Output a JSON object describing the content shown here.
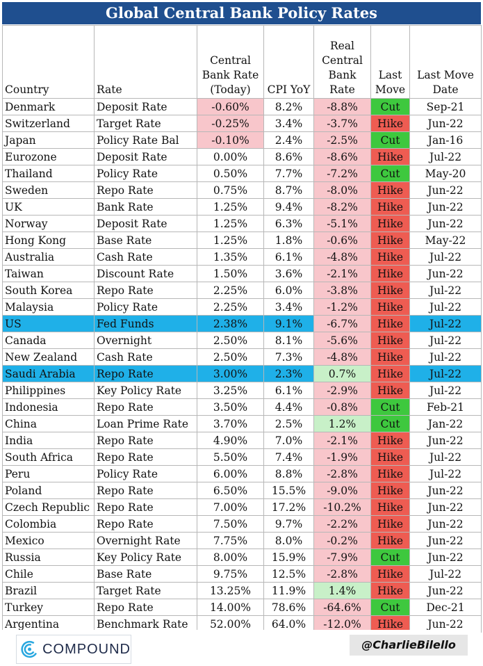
{
  "title": "Global Central Bank Policy Rates",
  "headers": {
    "country": "Country",
    "rate": "Rate",
    "cb_rate": "Central Bank Rate (Today)",
    "cpi": "CPI YoY",
    "real_rate": "Real Central Bank Rate",
    "last_move": "Last Move",
    "last_move_date": "Last Move Date"
  },
  "rows": [
    {
      "country": "Denmark",
      "rate": "Deposit Rate",
      "cb_rate": "-0.60%",
      "cpi": "8.2%",
      "real_rate": "-8.8%",
      "last_move": "Cut",
      "date": "Sep-21"
    },
    {
      "country": "Switzerland",
      "rate": "Target Rate",
      "cb_rate": "-0.25%",
      "cpi": "3.4%",
      "real_rate": "-3.7%",
      "last_move": "Hike",
      "date": "Jun-22"
    },
    {
      "country": "Japan",
      "rate": "Policy Rate Bal",
      "cb_rate": "-0.10%",
      "cpi": "2.4%",
      "real_rate": "-2.5%",
      "last_move": "Cut",
      "date": "Jan-16"
    },
    {
      "country": "Eurozone",
      "rate": "Deposit Rate",
      "cb_rate": "0.00%",
      "cpi": "8.6%",
      "real_rate": "-8.6%",
      "last_move": "Hike",
      "date": "Jul-22"
    },
    {
      "country": "Thailand",
      "rate": "Policy Rate",
      "cb_rate": "0.50%",
      "cpi": "7.7%",
      "real_rate": "-7.2%",
      "last_move": "Cut",
      "date": "May-20"
    },
    {
      "country": "Sweden",
      "rate": "Repo Rate",
      "cb_rate": "0.75%",
      "cpi": "8.7%",
      "real_rate": "-8.0%",
      "last_move": "Hike",
      "date": "Jun-22"
    },
    {
      "country": "UK",
      "rate": "Bank Rate",
      "cb_rate": "1.25%",
      "cpi": "9.4%",
      "real_rate": "-8.2%",
      "last_move": "Hike",
      "date": "Jun-22"
    },
    {
      "country": "Norway",
      "rate": "Deposit Rate",
      "cb_rate": "1.25%",
      "cpi": "6.3%",
      "real_rate": "-5.1%",
      "last_move": "Hike",
      "date": "Jun-22"
    },
    {
      "country": "Hong Kong",
      "rate": "Base Rate",
      "cb_rate": "1.25%",
      "cpi": "1.8%",
      "real_rate": "-0.6%",
      "last_move": "Hike",
      "date": "May-22"
    },
    {
      "country": "Australia",
      "rate": "Cash Rate",
      "cb_rate": "1.35%",
      "cpi": "6.1%",
      "real_rate": "-4.8%",
      "last_move": "Hike",
      "date": "Jul-22"
    },
    {
      "country": "Taiwan",
      "rate": "Discount Rate",
      "cb_rate": "1.50%",
      "cpi": "3.6%",
      "real_rate": "-2.1%",
      "last_move": "Hike",
      "date": "Jun-22"
    },
    {
      "country": "South Korea",
      "rate": "Repo Rate",
      "cb_rate": "2.25%",
      "cpi": "6.0%",
      "real_rate": "-3.8%",
      "last_move": "Hike",
      "date": "Jul-22"
    },
    {
      "country": "Malaysia",
      "rate": "Policy Rate",
      "cb_rate": "2.25%",
      "cpi": "3.4%",
      "real_rate": "-1.2%",
      "last_move": "Hike",
      "date": "Jul-22"
    },
    {
      "country": "US",
      "rate": "Fed Funds",
      "cb_rate": "2.38%",
      "cpi": "9.1%",
      "real_rate": "-6.7%",
      "last_move": "Hike",
      "date": "Jul-22",
      "highlight": true
    },
    {
      "country": "Canada",
      "rate": "Overnight",
      "cb_rate": "2.50%",
      "cpi": "8.1%",
      "real_rate": "-5.6%",
      "last_move": "Hike",
      "date": "Jul-22"
    },
    {
      "country": "New Zealand",
      "rate": "Cash Rate",
      "cb_rate": "2.50%",
      "cpi": "7.3%",
      "real_rate": "-4.8%",
      "last_move": "Hike",
      "date": "Jul-22"
    },
    {
      "country": "Saudi Arabia",
      "rate": "Repo Rate",
      "cb_rate": "3.00%",
      "cpi": "2.3%",
      "real_rate": "0.7%",
      "last_move": "Hike",
      "date": "Jul-22",
      "highlight": true
    },
    {
      "country": "Philippines",
      "rate": "Key Policy Rate",
      "cb_rate": "3.25%",
      "cpi": "6.1%",
      "real_rate": "-2.9%",
      "last_move": "Hike",
      "date": "Jul-22"
    },
    {
      "country": "Indonesia",
      "rate": "Repo Rate",
      "cb_rate": "3.50%",
      "cpi": "4.4%",
      "real_rate": "-0.8%",
      "last_move": "Cut",
      "date": "Feb-21"
    },
    {
      "country": "China",
      "rate": "Loan Prime Rate",
      "cb_rate": "3.70%",
      "cpi": "2.5%",
      "real_rate": "1.2%",
      "last_move": "Cut",
      "date": "Jan-22"
    },
    {
      "country": "India",
      "rate": "Repo Rate",
      "cb_rate": "4.90%",
      "cpi": "7.0%",
      "real_rate": "-2.1%",
      "last_move": "Hike",
      "date": "Jun-22"
    },
    {
      "country": "South Africa",
      "rate": "Repo Rate",
      "cb_rate": "5.50%",
      "cpi": "7.4%",
      "real_rate": "-1.9%",
      "last_move": "Hike",
      "date": "Jul-22"
    },
    {
      "country": "Peru",
      "rate": "Policy Rate",
      "cb_rate": "6.00%",
      "cpi": "8.8%",
      "real_rate": "-2.8%",
      "last_move": "Hike",
      "date": "Jul-22"
    },
    {
      "country": "Poland",
      "rate": "Repo Rate",
      "cb_rate": "6.50%",
      "cpi": "15.5%",
      "real_rate": "-9.0%",
      "last_move": "Hike",
      "date": "Jun-22"
    },
    {
      "country": "Czech Republic",
      "rate": "Repo Rate",
      "cb_rate": "7.00%",
      "cpi": "17.2%",
      "real_rate": "-10.2%",
      "last_move": "Hike",
      "date": "Jun-22"
    },
    {
      "country": "Colombia",
      "rate": "Repo Rate",
      "cb_rate": "7.50%",
      "cpi": "9.7%",
      "real_rate": "-2.2%",
      "last_move": "Hike",
      "date": "Jun-22"
    },
    {
      "country": "Mexico",
      "rate": "Overnight Rate",
      "cb_rate": "7.75%",
      "cpi": "8.0%",
      "real_rate": "-0.2%",
      "last_move": "Hike",
      "date": "Jun-22"
    },
    {
      "country": "Russia",
      "rate": "Key Policy Rate",
      "cb_rate": "8.00%",
      "cpi": "15.9%",
      "real_rate": "-7.9%",
      "last_move": "Cut",
      "date": "Jun-22"
    },
    {
      "country": "Chile",
      "rate": "Base Rate",
      "cb_rate": "9.75%",
      "cpi": "12.5%",
      "real_rate": "-2.8%",
      "last_move": "Hike",
      "date": "Jul-22"
    },
    {
      "country": "Brazil",
      "rate": "Target Rate",
      "cb_rate": "13.25%",
      "cpi": "11.9%",
      "real_rate": "1.4%",
      "last_move": "Hike",
      "date": "Jun-22"
    },
    {
      "country": "Turkey",
      "rate": "Repo Rate",
      "cb_rate": "14.00%",
      "cpi": "78.6%",
      "real_rate": "-64.6%",
      "last_move": "Cut",
      "date": "Dec-21"
    },
    {
      "country": "Argentina",
      "rate": "Benchmark Rate",
      "cb_rate": "52.00%",
      "cpi": "64.0%",
      "real_rate": "-12.0%",
      "last_move": "Hike",
      "date": "Jun-22"
    }
  ],
  "colors": {
    "title_bg": "#1f4f8f",
    "highlight_row": "#1fb0e8",
    "negative_cell": "#f8c6cb",
    "positive_cell": "#c8f0c8",
    "cut": "#3ec83e",
    "hike": "#ee5c52"
  },
  "footer": {
    "logo_text": "COMPOUND",
    "logo_icon": "compound-logo-icon",
    "handle": "@CharlieBilello"
  }
}
